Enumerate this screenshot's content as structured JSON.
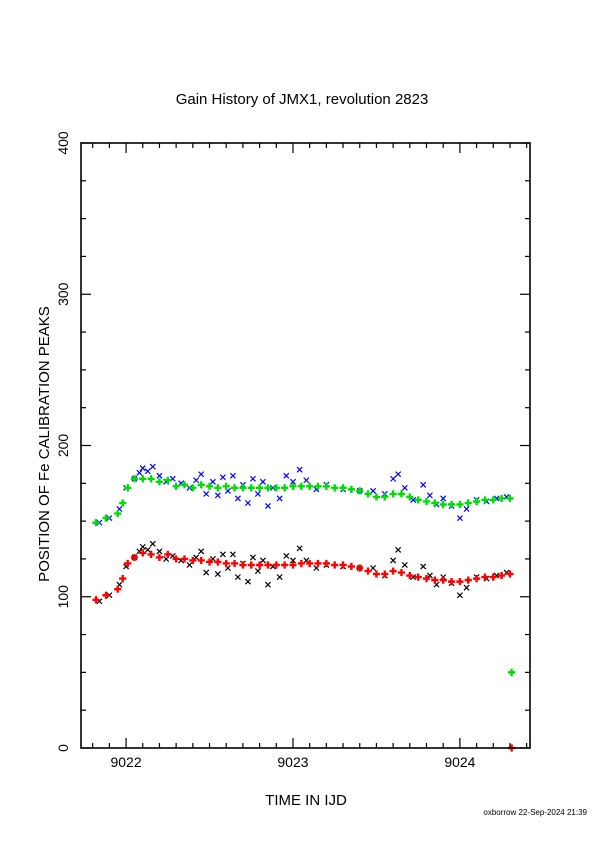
{
  "chart_data": {
    "type": "scatter",
    "title": "Gain History of JMX1, revolution 2823",
    "xlabel": "TIME IN IJD",
    "ylabel": "POSITION OF Fe CALIBRATION PEAKS",
    "xlim": [
      9021.73,
      9024.42
    ],
    "ylim": [
      0,
      400
    ],
    "x_ticks": [
      9022,
      9023,
      9024
    ],
    "y_ticks": [
      0,
      100,
      200,
      300,
      400
    ],
    "grid": false,
    "legend": "none",
    "series": [
      {
        "color": "#0000ff",
        "marker": "x",
        "points": [
          [
            9021.84,
            149
          ],
          [
            9021.9,
            152
          ],
          [
            9021.96,
            158
          ],
          [
            9022.0,
            172
          ],
          [
            9022.05,
            178
          ],
          [
            9022.08,
            182
          ],
          [
            9022.1,
            185
          ],
          [
            9022.13,
            183
          ],
          [
            9022.16,
            186
          ],
          [
            9022.2,
            180
          ],
          [
            9022.24,
            176
          ],
          [
            9022.28,
            178
          ],
          [
            9022.33,
            175
          ],
          [
            9022.38,
            172
          ],
          [
            9022.42,
            177
          ],
          [
            9022.45,
            181
          ],
          [
            9022.48,
            168
          ],
          [
            9022.52,
            176
          ],
          [
            9022.55,
            167
          ],
          [
            9022.58,
            179
          ],
          [
            9022.61,
            170
          ],
          [
            9022.64,
            180
          ],
          [
            9022.67,
            165
          ],
          [
            9022.7,
            174
          ],
          [
            9022.73,
            162
          ],
          [
            9022.76,
            178
          ],
          [
            9022.79,
            168
          ],
          [
            9022.82,
            176
          ],
          [
            9022.85,
            160
          ],
          [
            9022.88,
            172
          ],
          [
            9022.92,
            165
          ],
          [
            9022.96,
            180
          ],
          [
            9023.0,
            176
          ],
          [
            9023.04,
            184
          ],
          [
            9023.08,
            177
          ],
          [
            9023.14,
            171
          ],
          [
            9023.2,
            174
          ],
          [
            9023.3,
            171
          ],
          [
            9023.4,
            170
          ],
          [
            9023.48,
            170
          ],
          [
            9023.55,
            168
          ],
          [
            9023.6,
            178
          ],
          [
            9023.63,
            181
          ],
          [
            9023.67,
            172
          ],
          [
            9023.72,
            164
          ],
          [
            9023.78,
            174
          ],
          [
            9023.82,
            167
          ],
          [
            9023.86,
            161
          ],
          [
            9023.9,
            165
          ],
          [
            9023.95,
            160
          ],
          [
            9024.0,
            152
          ],
          [
            9024.04,
            158
          ],
          [
            9024.1,
            164
          ],
          [
            9024.16,
            163
          ],
          [
            9024.22,
            165
          ],
          [
            9024.28,
            166
          ]
        ]
      },
      {
        "color": "#00dd00",
        "marker": "+",
        "points": [
          [
            9021.82,
            149
          ],
          [
            9021.88,
            152
          ],
          [
            9021.95,
            155
          ],
          [
            9021.98,
            162
          ],
          [
            9022.01,
            172
          ],
          [
            9022.05,
            178
          ],
          [
            9022.1,
            178
          ],
          [
            9022.15,
            178
          ],
          [
            9022.2,
            176
          ],
          [
            9022.25,
            177
          ],
          [
            9022.3,
            173
          ],
          [
            9022.35,
            174
          ],
          [
            9022.4,
            172
          ],
          [
            9022.45,
            174
          ],
          [
            9022.5,
            173
          ],
          [
            9022.55,
            172
          ],
          [
            9022.6,
            173
          ],
          [
            9022.65,
            172
          ],
          [
            9022.7,
            172
          ],
          [
            9022.75,
            172
          ],
          [
            9022.8,
            172
          ],
          [
            9022.85,
            172
          ],
          [
            9022.9,
            172
          ],
          [
            9022.95,
            172
          ],
          [
            9023.0,
            173
          ],
          [
            9023.05,
            173
          ],
          [
            9023.1,
            173
          ],
          [
            9023.15,
            173
          ],
          [
            9023.2,
            173
          ],
          [
            9023.25,
            172
          ],
          [
            9023.3,
            172
          ],
          [
            9023.35,
            171
          ],
          [
            9023.4,
            170
          ],
          [
            9023.45,
            168
          ],
          [
            9023.5,
            166
          ],
          [
            9023.55,
            166
          ],
          [
            9023.6,
            168
          ],
          [
            9023.65,
            168
          ],
          [
            9023.7,
            166
          ],
          [
            9023.75,
            164
          ],
          [
            9023.8,
            163
          ],
          [
            9023.85,
            162
          ],
          [
            9023.9,
            161
          ],
          [
            9023.95,
            161
          ],
          [
            9024.0,
            161
          ],
          [
            9024.05,
            162
          ],
          [
            9024.1,
            163
          ],
          [
            9024.15,
            164
          ],
          [
            9024.2,
            164
          ],
          [
            9024.25,
            165
          ],
          [
            9024.3,
            165
          ],
          [
            9024.31,
            50
          ]
        ]
      },
      {
        "color": "#000000",
        "marker": "x",
        "points": [
          [
            9021.84,
            97
          ],
          [
            9021.9,
            101
          ],
          [
            9021.96,
            108
          ],
          [
            9022.0,
            120
          ],
          [
            9022.05,
            126
          ],
          [
            9022.08,
            130
          ],
          [
            9022.1,
            133
          ],
          [
            9022.13,
            131
          ],
          [
            9022.16,
            135
          ],
          [
            9022.2,
            130
          ],
          [
            9022.24,
            125
          ],
          [
            9022.28,
            127
          ],
          [
            9022.33,
            124
          ],
          [
            9022.38,
            121
          ],
          [
            9022.42,
            126
          ],
          [
            9022.45,
            130
          ],
          [
            9022.48,
            116
          ],
          [
            9022.52,
            125
          ],
          [
            9022.55,
            115
          ],
          [
            9022.58,
            128
          ],
          [
            9022.61,
            119
          ],
          [
            9022.64,
            128
          ],
          [
            9022.67,
            113
          ],
          [
            9022.7,
            122
          ],
          [
            9022.73,
            110
          ],
          [
            9022.76,
            126
          ],
          [
            9022.79,
            117
          ],
          [
            9022.82,
            124
          ],
          [
            9022.85,
            108
          ],
          [
            9022.88,
            120
          ],
          [
            9022.92,
            113
          ],
          [
            9022.96,
            127
          ],
          [
            9023.0,
            124
          ],
          [
            9023.04,
            132
          ],
          [
            9023.08,
            124
          ],
          [
            9023.14,
            119
          ],
          [
            9023.2,
            121
          ],
          [
            9023.3,
            120
          ],
          [
            9023.4,
            119
          ],
          [
            9023.48,
            119
          ],
          [
            9023.55,
            114
          ],
          [
            9023.6,
            124
          ],
          [
            9023.63,
            131
          ],
          [
            9023.67,
            121
          ],
          [
            9023.72,
            113
          ],
          [
            9023.78,
            120
          ],
          [
            9023.82,
            114
          ],
          [
            9023.86,
            108
          ],
          [
            9023.9,
            113
          ],
          [
            9023.95,
            109
          ],
          [
            9024.0,
            101
          ],
          [
            9024.04,
            106
          ],
          [
            9024.1,
            113
          ],
          [
            9024.16,
            112
          ],
          [
            9024.22,
            114
          ],
          [
            9024.28,
            116
          ]
        ]
      },
      {
        "color": "#ff0000",
        "marker": "+",
        "points": [
          [
            9021.82,
            98
          ],
          [
            9021.88,
            101
          ],
          [
            9021.95,
            105
          ],
          [
            9021.98,
            112
          ],
          [
            9022.01,
            122
          ],
          [
            9022.05,
            126
          ],
          [
            9022.1,
            129
          ],
          [
            9022.15,
            128
          ],
          [
            9022.2,
            126
          ],
          [
            9022.25,
            128
          ],
          [
            9022.3,
            125
          ],
          [
            9022.35,
            125
          ],
          [
            9022.4,
            124
          ],
          [
            9022.45,
            124
          ],
          [
            9022.5,
            123
          ],
          [
            9022.55,
            123
          ],
          [
            9022.6,
            122
          ],
          [
            9022.65,
            122
          ],
          [
            9022.7,
            121
          ],
          [
            9022.75,
            121
          ],
          [
            9022.8,
            121
          ],
          [
            9022.85,
            121
          ],
          [
            9022.9,
            121
          ],
          [
            9022.95,
            121
          ],
          [
            9023.0,
            121
          ],
          [
            9023.05,
            122
          ],
          [
            9023.1,
            122
          ],
          [
            9023.15,
            122
          ],
          [
            9023.2,
            122
          ],
          [
            9023.25,
            121
          ],
          [
            9023.3,
            121
          ],
          [
            9023.35,
            120
          ],
          [
            9023.4,
            119
          ],
          [
            9023.45,
            117
          ],
          [
            9023.5,
            115
          ],
          [
            9023.55,
            115
          ],
          [
            9023.6,
            117
          ],
          [
            9023.65,
            116
          ],
          [
            9023.7,
            114
          ],
          [
            9023.75,
            113
          ],
          [
            9023.8,
            112
          ],
          [
            9023.85,
            111
          ],
          [
            9023.9,
            111
          ],
          [
            9023.95,
            110
          ],
          [
            9024.0,
            110
          ],
          [
            9024.05,
            111
          ],
          [
            9024.1,
            112
          ],
          [
            9024.15,
            113
          ],
          [
            9024.2,
            113
          ],
          [
            9024.25,
            114
          ],
          [
            9024.3,
            115
          ],
          [
            9024.31,
            0
          ]
        ]
      }
    ]
  },
  "footer": "oxborrow 22-Sep-2024 21:39"
}
